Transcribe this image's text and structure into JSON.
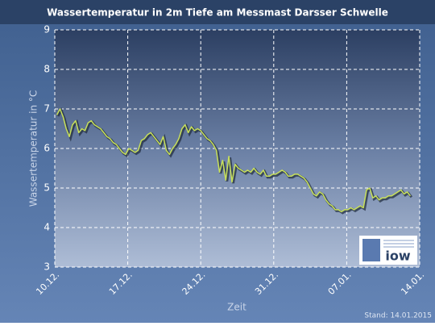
{
  "chart_data": {
    "type": "line",
    "title": "Wassertemperatur in 2m Tiefe am Messmast Darsser Schwelle",
    "y_label": "Wassertemperatur in °C",
    "x_label": "Zeit",
    "footnote": "Stand: 14.01.2015",
    "logo_text": "iow",
    "xlim": [
      0,
      35
    ],
    "xticks": [
      {
        "value": 0,
        "label": "10.12."
      },
      {
        "value": 7,
        "label": "17.12."
      },
      {
        "value": 14,
        "label": "24.12."
      },
      {
        "value": 21,
        "label": "31.12."
      },
      {
        "value": 28,
        "label": "07.01."
      },
      {
        "value": 35,
        "label": "14.01."
      }
    ],
    "ylim": [
      3,
      9
    ],
    "yticks": [
      3,
      4,
      5,
      6,
      7,
      8,
      9
    ],
    "grid": true,
    "series": [
      {
        "name": "Wassertemperatur",
        "color": "#c8e05a",
        "x": [
          0.2,
          0.5,
          0.8,
          1.1,
          1.4,
          1.7,
          2,
          2.3,
          2.6,
          2.9,
          3.2,
          3.5,
          3.8,
          4.1,
          4.4,
          4.7,
          5,
          5.3,
          5.6,
          5.9,
          6.2,
          6.5,
          6.8,
          7.1,
          7.4,
          7.7,
          8,
          8.3,
          8.6,
          8.9,
          9.2,
          9.5,
          9.8,
          10.1,
          10.4,
          10.7,
          11,
          11.3,
          11.6,
          11.9,
          12.2,
          12.5,
          12.8,
          13.1,
          13.4,
          13.7,
          14,
          14.3,
          14.6,
          14.9,
          15.2,
          15.5,
          15.8,
          16.1,
          16.4,
          16.7,
          17,
          17.3,
          17.6,
          17.9,
          18.2,
          18.5,
          18.8,
          19.1,
          19.4,
          19.7,
          20,
          20.3,
          20.6,
          20.9,
          21.2,
          21.5,
          21.8,
          22.1,
          22.4,
          22.7,
          23,
          23.3,
          23.6,
          23.9,
          24.2,
          24.5,
          24.8,
          25.1,
          25.4,
          25.7,
          26,
          26.3,
          26.6,
          26.9,
          27.2,
          27.5,
          27.8,
          28.1,
          28.4,
          28.7,
          29,
          29.3,
          29.6,
          29.9,
          30.2,
          30.5,
          30.8,
          31.1,
          31.4,
          31.7,
          32,
          32.3,
          32.6,
          32.9,
          33.2,
          33.5,
          33.8,
          34.1
        ],
        "values": [
          6.85,
          7.0,
          6.8,
          6.5,
          6.3,
          6.6,
          6.7,
          6.4,
          6.5,
          6.45,
          6.65,
          6.7,
          6.6,
          6.55,
          6.5,
          6.4,
          6.3,
          6.25,
          6.15,
          6.1,
          6.0,
          5.9,
          5.85,
          6.0,
          5.95,
          5.9,
          5.95,
          6.2,
          6.25,
          6.35,
          6.4,
          6.3,
          6.2,
          6.1,
          6.3,
          5.95,
          5.85,
          6.0,
          6.1,
          6.25,
          6.5,
          6.6,
          6.4,
          6.55,
          6.45,
          6.5,
          6.45,
          6.35,
          6.25,
          6.2,
          6.1,
          5.95,
          5.4,
          5.7,
          5.2,
          5.8,
          5.15,
          5.6,
          5.5,
          5.45,
          5.4,
          5.45,
          5.4,
          5.5,
          5.4,
          5.35,
          5.45,
          5.3,
          5.3,
          5.35,
          5.35,
          5.4,
          5.45,
          5.4,
          5.3,
          5.3,
          5.35,
          5.35,
          5.3,
          5.25,
          5.15,
          5.0,
          4.85,
          4.8,
          4.9,
          4.85,
          4.7,
          4.6,
          4.55,
          4.45,
          4.45,
          4.4,
          4.45,
          4.45,
          4.5,
          4.45,
          4.5,
          4.55,
          4.5,
          4.95,
          5.0,
          4.75,
          4.8,
          4.7,
          4.75,
          4.75,
          4.8,
          4.8,
          4.85,
          4.9,
          4.95,
          4.85,
          4.9,
          4.8
        ]
      }
    ]
  }
}
